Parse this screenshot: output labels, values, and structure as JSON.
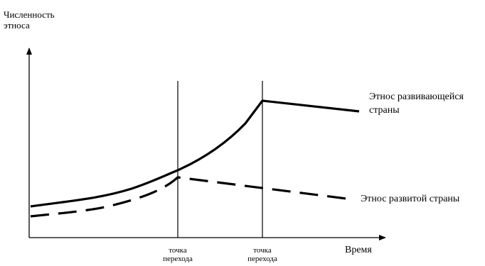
{
  "y_axis_label": [
    "Численность",
    "этноса"
  ],
  "x_axis_label": "Время",
  "transition_points": [
    {
      "label": [
        "точка",
        "перехода"
      ]
    },
    {
      "label": [
        "точка",
        "перехода"
      ]
    }
  ],
  "series": [
    {
      "name": [
        "Этнос развивающейся",
        "страны"
      ],
      "style": "solid"
    },
    {
      "name": [
        "Этнос развитой страны"
      ],
      "style": "dashed"
    }
  ],
  "colors": {
    "line": "#000000",
    "background": "#ffffff"
  }
}
